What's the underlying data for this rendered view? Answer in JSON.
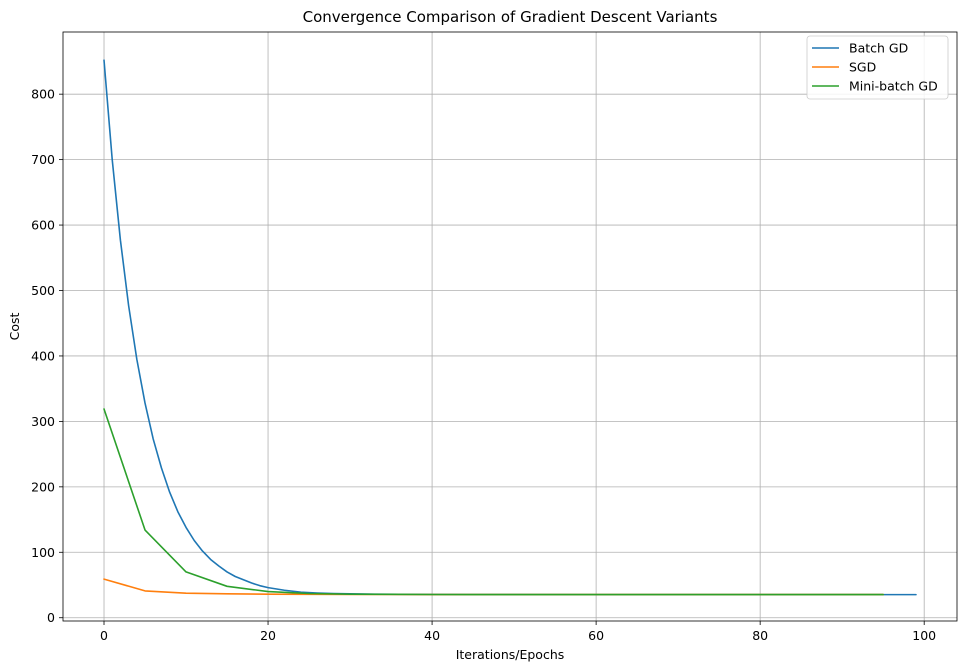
{
  "chart_data": {
    "type": "line",
    "title": "Convergence Comparison of Gradient Descent Variants",
    "xlabel": "Iterations/Epochs",
    "ylabel": "Cost",
    "xlim": [
      -5,
      104
    ],
    "ylim": [
      -5,
      895
    ],
    "xticks": [
      0,
      20,
      40,
      60,
      80,
      100
    ],
    "yticks": [
      0,
      100,
      200,
      300,
      400,
      500,
      600,
      700,
      800
    ],
    "grid": true,
    "legend_position": "top-right",
    "series": [
      {
        "name": "Batch GD",
        "color": "#1f77b4",
        "x": [
          0,
          1,
          2,
          3,
          4,
          5,
          6,
          7,
          8,
          9,
          10,
          11,
          12,
          13,
          14,
          15,
          16,
          17,
          18,
          19,
          20,
          22,
          24,
          26,
          28,
          30,
          33,
          36,
          40,
          45,
          50,
          60,
          70,
          80,
          90,
          99
        ],
        "y": [
          852,
          700,
          577,
          477,
          395,
          328,
          273,
          229,
          192,
          162,
          138,
          118,
          102,
          89,
          79,
          70,
          63,
          58,
          53,
          49,
          46,
          42,
          39,
          37.8,
          37,
          36.5,
          36,
          35.8,
          35.6,
          35.5,
          35.4,
          35.3,
          35.3,
          35.3,
          35.3,
          35.3
        ]
      },
      {
        "name": "SGD",
        "color": "#ff7f0e",
        "x": [
          0,
          5,
          10,
          15,
          20,
          25,
          30,
          35,
          40,
          45,
          50,
          55,
          60,
          65,
          70,
          75,
          80,
          85,
          90,
          95
        ],
        "y": [
          59,
          41,
          37.5,
          36.5,
          36,
          35.8,
          35.6,
          35.5,
          35.4,
          35.4,
          35.4,
          35.4,
          35.4,
          35.4,
          35.4,
          35.4,
          35.4,
          35.4,
          35.4,
          35.4
        ]
      },
      {
        "name": "Mini-batch GD",
        "color": "#2ca02c",
        "x": [
          0,
          5,
          10,
          15,
          20,
          25,
          30,
          35,
          40,
          45,
          50,
          55,
          60,
          65,
          70,
          75,
          80,
          85,
          90,
          95
        ],
        "y": [
          319,
          134,
          70,
          48,
          40,
          37,
          36,
          35.7,
          35.5,
          35.4,
          35.4,
          35.4,
          35.4,
          35.4,
          35.4,
          35.4,
          35.4,
          35.4,
          35.4,
          35.4
        ]
      }
    ]
  }
}
